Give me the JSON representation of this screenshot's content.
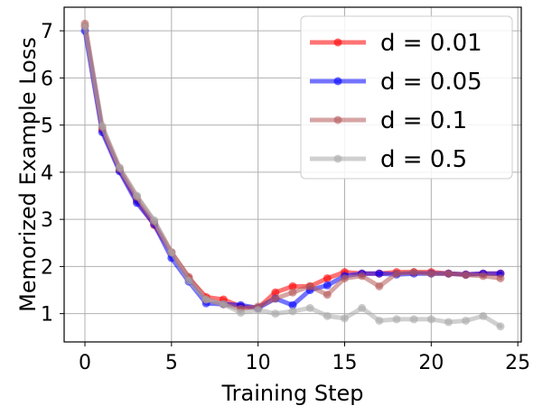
{
  "chart_data": {
    "type": "line",
    "xlabel": "Training Step",
    "ylabel": "Memorized Example Loss",
    "xlim": [
      -1.2,
      25.2
    ],
    "ylim": [
      0.4,
      7.5
    ],
    "xticks": [
      0,
      5,
      10,
      15,
      20,
      25
    ],
    "yticks": [
      1,
      2,
      3,
      4,
      5,
      6,
      7
    ],
    "grid": true,
    "legend_position": "top-right",
    "x": [
      0,
      1,
      2,
      3,
      4,
      5,
      6,
      7,
      8,
      9,
      10,
      11,
      12,
      13,
      14,
      15,
      16,
      17,
      18,
      19,
      20,
      21,
      22,
      23,
      24
    ],
    "series": [
      {
        "name": "d = 0.01",
        "color": "#ff0000",
        "values": [
          7.1,
          4.9,
          4.05,
          3.4,
          2.88,
          2.3,
          1.75,
          1.35,
          1.3,
          1.15,
          1.12,
          1.45,
          1.58,
          1.58,
          1.75,
          1.88,
          1.85,
          1.85,
          1.88,
          1.88,
          1.88,
          1.85,
          1.83,
          1.85,
          1.85
        ]
      },
      {
        "name": "d = 0.05",
        "color": "#0000ff",
        "values": [
          7.0,
          4.85,
          4.02,
          3.35,
          2.9,
          2.18,
          1.68,
          1.22,
          1.2,
          1.18,
          1.12,
          1.32,
          1.18,
          1.5,
          1.6,
          1.8,
          1.85,
          1.85,
          1.83,
          1.85,
          1.85,
          1.85,
          1.83,
          1.85,
          1.85
        ]
      },
      {
        "name": "d = 0.1",
        "color": "#b55a5a",
        "values": [
          7.15,
          4.95,
          4.08,
          3.48,
          2.95,
          2.3,
          1.78,
          1.3,
          1.2,
          1.1,
          1.15,
          1.32,
          1.45,
          1.58,
          1.4,
          1.75,
          1.8,
          1.58,
          1.85,
          1.88,
          1.85,
          1.85,
          1.82,
          1.8,
          1.75
        ]
      },
      {
        "name": "d = 0.5",
        "color": "#aaaaaa",
        "values": [
          7.1,
          4.98,
          4.1,
          3.5,
          2.98,
          2.3,
          1.7,
          1.3,
          1.2,
          1.02,
          1.08,
          1.0,
          1.05,
          1.12,
          0.95,
          0.9,
          1.12,
          0.85,
          0.88,
          0.88,
          0.88,
          0.82,
          0.85,
          0.95,
          0.73
        ]
      }
    ]
  }
}
